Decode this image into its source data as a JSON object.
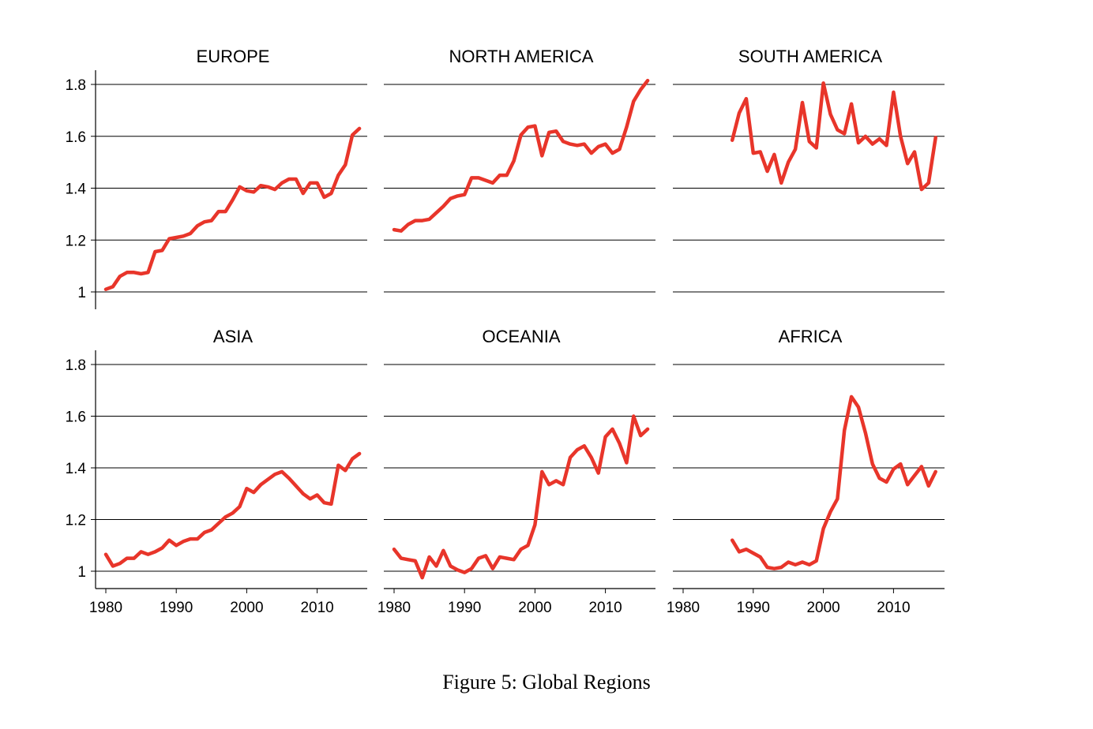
{
  "caption": "Figure 5: Global Regions",
  "line_color": "#e8352a",
  "chart_data": [
    {
      "type": "line",
      "title": "EUROPE",
      "xlim": [
        1979,
        2017
      ],
      "ylim": [
        0.94,
        1.84
      ],
      "yticks": [
        1,
        1.2,
        1.4,
        1.6,
        1.8
      ],
      "ytick_labels": [
        "1",
        "1.2",
        "1.4",
        "1.6",
        "1.8"
      ],
      "xticks": [
        1980,
        1990,
        2000,
        2010
      ],
      "xtick_labels": [
        "1980",
        "1990",
        "2000",
        "2010"
      ],
      "show_y_axis": true,
      "show_x_axis": false,
      "x": [
        1980,
        1981,
        1982,
        1983,
        1984,
        1985,
        1986,
        1987,
        1988,
        1989,
        1990,
        1991,
        1992,
        1993,
        1994,
        1995,
        1996,
        1997,
        1998,
        1999,
        2000,
        2001,
        2002,
        2003,
        2004,
        2005,
        2006,
        2007,
        2008,
        2009,
        2010,
        2011,
        2012,
        2013,
        2014,
        2015,
        2016
      ],
      "y": [
        1.01,
        1.02,
        1.06,
        1.075,
        1.075,
        1.07,
        1.075,
        1.155,
        1.16,
        1.205,
        1.21,
        1.215,
        1.225,
        1.255,
        1.27,
        1.275,
        1.31,
        1.31,
        1.355,
        1.405,
        1.39,
        1.385,
        1.41,
        1.405,
        1.395,
        1.42,
        1.435,
        1.435,
        1.38,
        1.42,
        1.42,
        1.365,
        1.38,
        1.45,
        1.49,
        1.605,
        1.63
      ]
    },
    {
      "type": "line",
      "title": "NORTH AMERICA",
      "xlim": [
        1979,
        2017
      ],
      "ylim": [
        0.94,
        1.84
      ],
      "yticks": [
        1,
        1.2,
        1.4,
        1.6,
        1.8
      ],
      "ytick_labels": [
        "1",
        "1.2",
        "1.4",
        "1.6",
        "1.8"
      ],
      "xticks": [
        1980,
        1990,
        2000,
        2010
      ],
      "xtick_labels": [
        "1980",
        "1990",
        "2000",
        "2010"
      ],
      "show_y_axis": false,
      "show_x_axis": false,
      "x": [
        1980,
        1981,
        1982,
        1983,
        1984,
        1985,
        1986,
        1987,
        1988,
        1989,
        1990,
        1991,
        1992,
        1993,
        1994,
        1995,
        1996,
        1997,
        1998,
        1999,
        2000,
        2001,
        2002,
        2003,
        2004,
        2005,
        2006,
        2007,
        2008,
        2009,
        2010,
        2011,
        2012,
        2013,
        2014,
        2015,
        2016
      ],
      "y": [
        1.24,
        1.235,
        1.26,
        1.275,
        1.275,
        1.28,
        1.305,
        1.33,
        1.36,
        1.37,
        1.375,
        1.44,
        1.44,
        1.43,
        1.42,
        1.45,
        1.45,
        1.505,
        1.605,
        1.635,
        1.64,
        1.525,
        1.615,
        1.62,
        1.58,
        1.57,
        1.565,
        1.57,
        1.535,
        1.56,
        1.57,
        1.535,
        1.55,
        1.635,
        1.735,
        1.78,
        1.815
      ]
    },
    {
      "type": "line",
      "title": "SOUTH AMERICA",
      "xlim": [
        1979,
        2017
      ],
      "ylim": [
        0.94,
        1.84
      ],
      "yticks": [
        1,
        1.2,
        1.4,
        1.6,
        1.8
      ],
      "ytick_labels": [
        "1",
        "1.2",
        "1.4",
        "1.6",
        "1.8"
      ],
      "xticks": [
        1980,
        1990,
        2000,
        2010
      ],
      "xtick_labels": [
        "1980",
        "1990",
        "2000",
        "2010"
      ],
      "show_y_axis": false,
      "show_x_axis": false,
      "x": [
        1987,
        1988,
        1989,
        1990,
        1991,
        1992,
        1993,
        1994,
        1995,
        1996,
        1997,
        1998,
        1999,
        2000,
        2001,
        2002,
        2003,
        2004,
        2005,
        2006,
        2007,
        2008,
        2009,
        2010,
        2011,
        2012,
        2013,
        2014,
        2015,
        2016
      ],
      "y": [
        1.585,
        1.69,
        1.745,
        1.535,
        1.54,
        1.465,
        1.53,
        1.42,
        1.5,
        1.55,
        1.73,
        1.58,
        1.555,
        1.805,
        1.685,
        1.625,
        1.61,
        1.725,
        1.575,
        1.6,
        1.57,
        1.59,
        1.565,
        1.77,
        1.6,
        1.495,
        1.54,
        1.395,
        1.42,
        1.595
      ]
    },
    {
      "type": "line",
      "title": "ASIA",
      "xlim": [
        1979,
        2017
      ],
      "ylim": [
        0.94,
        1.84
      ],
      "yticks": [
        1,
        1.2,
        1.4,
        1.6,
        1.8
      ],
      "ytick_labels": [
        "1",
        "1.2",
        "1.4",
        "1.6",
        "1.8"
      ],
      "xticks": [
        1980,
        1990,
        2000,
        2010
      ],
      "xtick_labels": [
        "1980",
        "1990",
        "2000",
        "2010"
      ],
      "show_y_axis": true,
      "show_x_axis": true,
      "x": [
        1980,
        1981,
        1982,
        1983,
        1984,
        1985,
        1986,
        1987,
        1988,
        1989,
        1990,
        1991,
        1992,
        1993,
        1994,
        1995,
        1996,
        1997,
        1998,
        1999,
        2000,
        2001,
        2002,
        2003,
        2004,
        2005,
        2006,
        2007,
        2008,
        2009,
        2010,
        2011,
        2012,
        2013,
        2014,
        2015,
        2016
      ],
      "y": [
        1.065,
        1.02,
        1.03,
        1.05,
        1.05,
        1.075,
        1.065,
        1.075,
        1.09,
        1.12,
        1.1,
        1.115,
        1.125,
        1.125,
        1.15,
        1.16,
        1.185,
        1.21,
        1.225,
        1.25,
        1.32,
        1.305,
        1.335,
        1.355,
        1.375,
        1.385,
        1.36,
        1.33,
        1.3,
        1.28,
        1.295,
        1.265,
        1.26,
        1.41,
        1.39,
        1.435,
        1.455
      ]
    },
    {
      "type": "line",
      "title": "OCEANIA",
      "xlim": [
        1979,
        2017
      ],
      "ylim": [
        0.94,
        1.84
      ],
      "yticks": [
        1,
        1.2,
        1.4,
        1.6,
        1.8
      ],
      "ytick_labels": [
        "1",
        "1.2",
        "1.4",
        "1.6",
        "1.8"
      ],
      "xticks": [
        1980,
        1990,
        2000,
        2010
      ],
      "xtick_labels": [
        "1980",
        "1990",
        "2000",
        "2010"
      ],
      "show_y_axis": false,
      "show_x_axis": true,
      "x": [
        1980,
        1981,
        1982,
        1983,
        1984,
        1985,
        1986,
        1987,
        1988,
        1989,
        1990,
        1991,
        1992,
        1993,
        1994,
        1995,
        1996,
        1997,
        1998,
        1999,
        2000,
        2001,
        2002,
        2003,
        2004,
        2005,
        2006,
        2007,
        2008,
        2009,
        2010,
        2011,
        2012,
        2013,
        2014,
        2015,
        2016
      ],
      "y": [
        1.085,
        1.05,
        1.045,
        1.04,
        0.975,
        1.055,
        1.02,
        1.08,
        1.02,
        1.005,
        0.995,
        1.01,
        1.05,
        1.06,
        1.01,
        1.055,
        1.05,
        1.045,
        1.085,
        1.1,
        1.18,
        1.385,
        1.335,
        1.35,
        1.335,
        1.44,
        1.47,
        1.485,
        1.44,
        1.38,
        1.52,
        1.55,
        1.495,
        1.42,
        1.6,
        1.525,
        1.55
      ]
    },
    {
      "type": "line",
      "title": "AFRICA",
      "xlim": [
        1979,
        2017
      ],
      "ylim": [
        0.94,
        1.84
      ],
      "yticks": [
        1,
        1.2,
        1.4,
        1.6,
        1.8
      ],
      "ytick_labels": [
        "1",
        "1.2",
        "1.4",
        "1.6",
        "1.8"
      ],
      "xticks": [
        1980,
        1990,
        2000,
        2010
      ],
      "xtick_labels": [
        "1980",
        "1990",
        "2000",
        "2010"
      ],
      "show_y_axis": false,
      "show_x_axis": true,
      "x": [
        1987,
        1988,
        1989,
        1990,
        1991,
        1992,
        1993,
        1994,
        1995,
        1996,
        1997,
        1998,
        1999,
        2000,
        2001,
        2002,
        2003,
        2004,
        2005,
        2006,
        2007,
        2008,
        2009,
        2010,
        2011,
        2012,
        2013,
        2014,
        2015,
        2016
      ],
      "y": [
        1.12,
        1.075,
        1.085,
        1.07,
        1.055,
        1.015,
        1.01,
        1.015,
        1.035,
        1.025,
        1.035,
        1.025,
        1.04,
        1.165,
        1.23,
        1.28,
        1.545,
        1.675,
        1.635,
        1.535,
        1.415,
        1.36,
        1.345,
        1.395,
        1.415,
        1.335,
        1.37,
        1.405,
        1.33,
        1.385
      ]
    }
  ]
}
